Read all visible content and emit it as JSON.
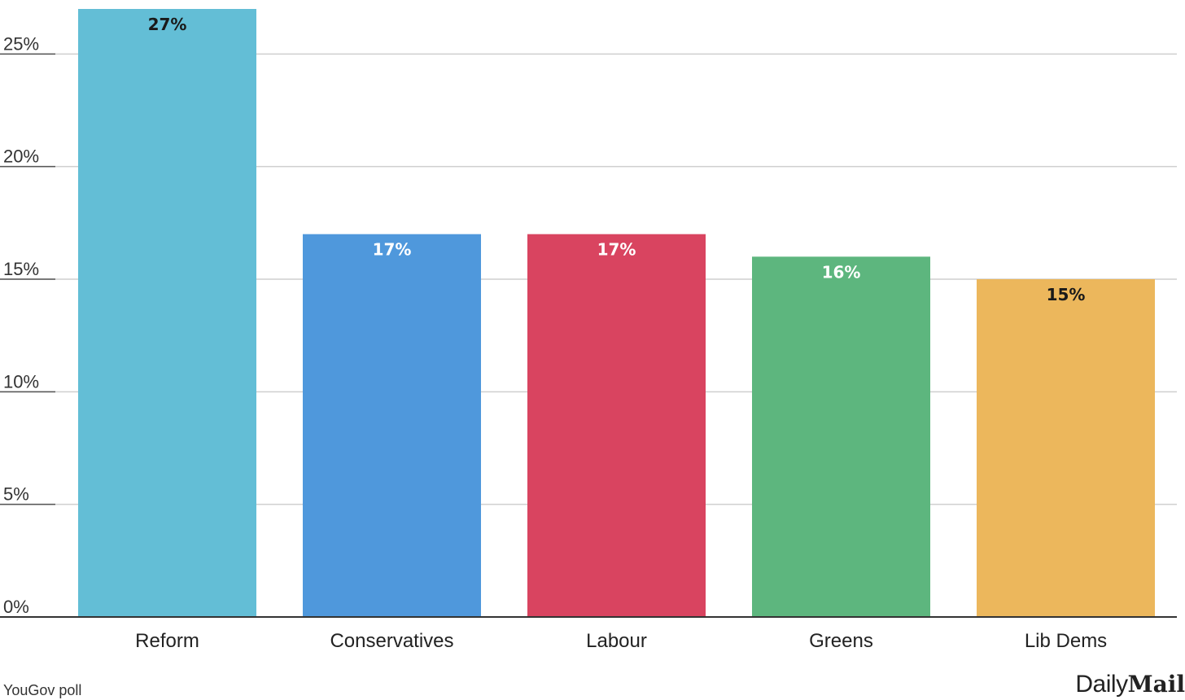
{
  "chart_data": {
    "type": "bar",
    "categories": [
      "Reform",
      "Conservatives",
      "Labour",
      "Greens",
      "Lib Dems"
    ],
    "values": [
      27,
      17,
      17,
      16,
      15
    ],
    "data_labels": [
      "27%",
      "17%",
      "17%",
      "16%",
      "15%"
    ],
    "colors": [
      "#63bed6",
      "#4f98dc",
      "#d94460",
      "#5db67e",
      "#ecb75c"
    ],
    "label_colors": [
      "#1a1a1a",
      "#ffffff",
      "#ffffff",
      "#ffffff",
      "#1a1a1a"
    ],
    "y_ticks": [
      0,
      5,
      10,
      15,
      20,
      25
    ],
    "y_tick_labels": [
      "0%",
      "5%",
      "10%",
      "15%",
      "20%",
      "25%"
    ],
    "ylim": [
      0,
      27
    ],
    "grid": true,
    "title": "",
    "xlabel": "",
    "ylabel": ""
  },
  "source": "YouGov poll",
  "brand": {
    "part1": "Daily",
    "part2": "Mail"
  }
}
